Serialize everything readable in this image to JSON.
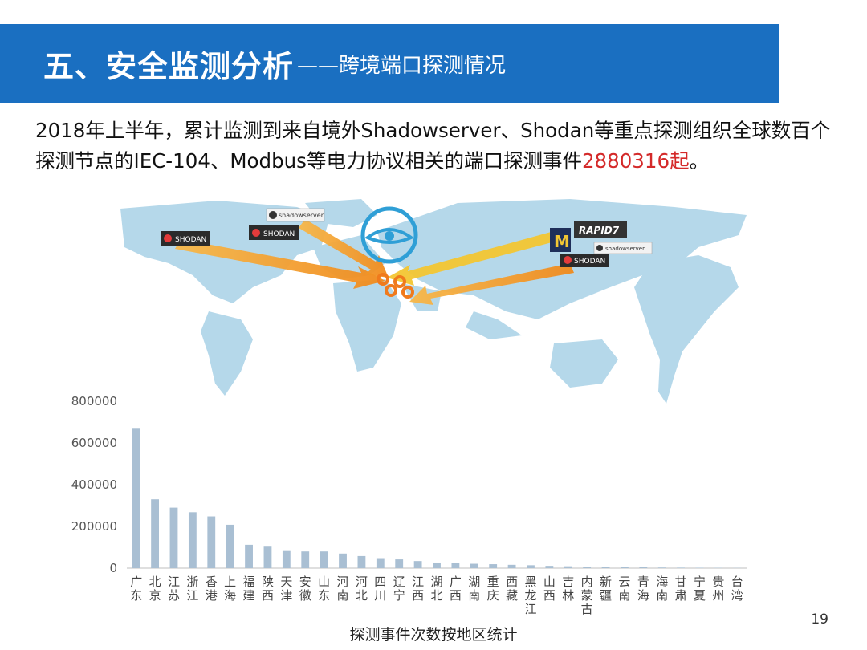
{
  "slide": {
    "title_main": "五、安全监测分析",
    "title_sub": "——跨境端口探测情况",
    "summary_before": "2018年上半年，累计监测到来自境外Shadowserver、Shodan等重点探测组织全球数百个探测节点的IEC-104、Modbus等电力协议相关的端口探测事件",
    "summary_highlight": "2880316起",
    "summary_after": "。",
    "page_number": "19",
    "highlight_color": "#d42a2a",
    "title_bar_color": "#1a6fc1"
  },
  "map": {
    "logos": {
      "shodan": "SHODAN",
      "shadowserver": "shadowserver",
      "rapid7": "RAPID7",
      "michigan": "M"
    }
  },
  "chart_data": {
    "type": "bar",
    "title": "探测事件次数按地区统计",
    "categories": [
      "广东",
      "北京",
      "江苏",
      "浙江",
      "香港",
      "上海",
      "福建",
      "陕西",
      "天津",
      "安徽",
      "山东",
      "河南",
      "河北",
      "四川",
      "辽宁",
      "江西",
      "湖北",
      "广西",
      "湖南",
      "重庆",
      "西藏",
      "黑龙江",
      "山西",
      "吉林",
      "内蒙古",
      "新疆",
      "云南",
      "青海",
      "海南",
      "甘肃",
      "宁夏",
      "贵州",
      "台湾"
    ],
    "values": [
      672000,
      330000,
      290000,
      268000,
      248000,
      208000,
      112000,
      103000,
      82000,
      80000,
      80000,
      70000,
      58000,
      48000,
      42000,
      34000,
      27000,
      24000,
      21000,
      19000,
      16000,
      14000,
      11000,
      9000,
      7000,
      6000,
      5000,
      4000,
      3000,
      2500,
      2000,
      1500,
      1000
    ],
    "ylim": [
      0,
      800000
    ],
    "yticks": [
      "0",
      "200000",
      "400000",
      "600000",
      "800000"
    ],
    "bar_color": "#a9bfd3",
    "grid": false
  }
}
